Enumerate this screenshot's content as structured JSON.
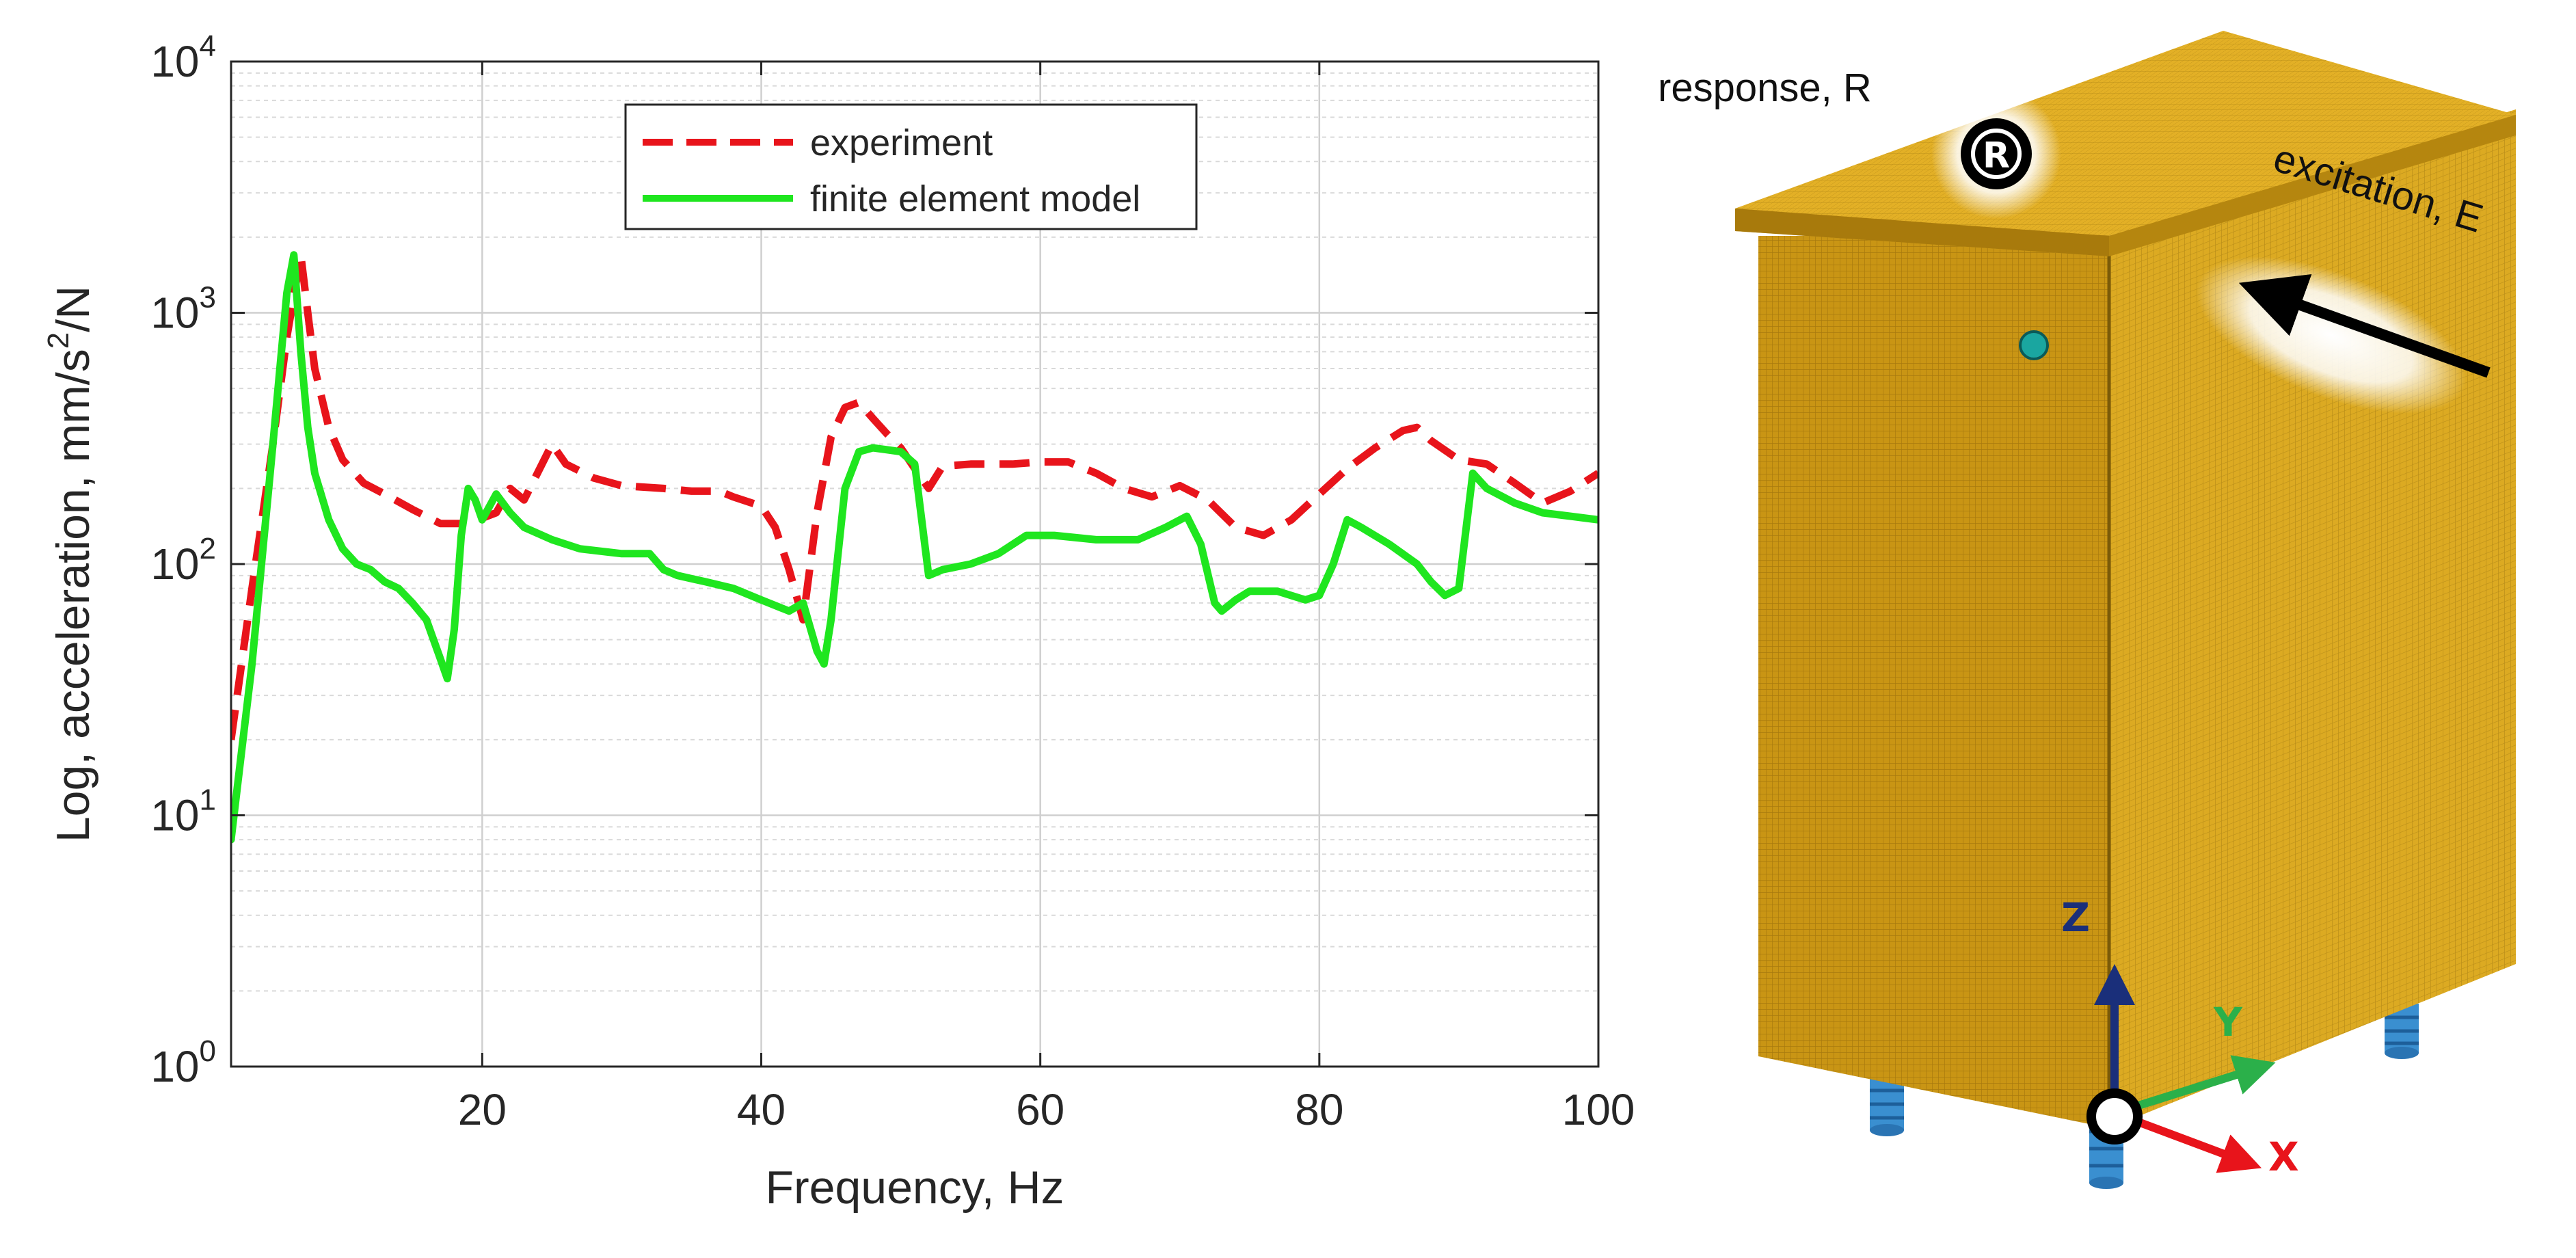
{
  "chart_data": {
    "type": "line",
    "title": "",
    "xlabel": "Frequency, Hz",
    "ylabel": "Log, acceleration, mm/s²/N",
    "ylabel_parts": {
      "prefix": "Log, acceleration, mm/s",
      "exponent": "2",
      "suffix": "/N"
    },
    "xlim": [
      2,
      100
    ],
    "ylim": [
      1,
      10000
    ],
    "yscale": "log",
    "grid": true,
    "legend_position": "top-center",
    "x_ticks": [
      20,
      40,
      60,
      80,
      100
    ],
    "y_ticks": [
      {
        "value": 1,
        "base": "10",
        "exp": "0"
      },
      {
        "value": 10,
        "base": "10",
        "exp": "1"
      },
      {
        "value": 100,
        "base": "10",
        "exp": "2"
      },
      {
        "value": 1000,
        "base": "10",
        "exp": "3"
      },
      {
        "value": 10000,
        "base": "10",
        "exp": "4"
      }
    ],
    "series": [
      {
        "name": "experiment",
        "color": "#e8141b",
        "style": "dashed",
        "x": [
          2,
          3.5,
          5,
          6,
          7,
          7.5,
          8,
          9,
          10,
          11.5,
          13,
          15,
          17,
          19,
          21,
          22,
          23,
          25,
          26,
          28,
          30,
          33,
          35,
          37,
          38,
          40,
          41,
          42,
          43,
          44,
          45,
          46,
          47,
          48,
          49,
          50,
          51,
          52,
          53,
          55,
          58,
          60,
          62,
          64,
          66,
          68,
          70,
          72,
          74,
          76,
          78,
          80,
          82,
          84,
          86,
          87,
          88,
          90,
          92,
          94,
          96,
          98,
          100
        ],
        "y": [
          20,
          80,
          300,
          800,
          1700,
          1000,
          600,
          350,
          260,
          210,
          190,
          165,
          145,
          145,
          160,
          200,
          180,
          300,
          250,
          220,
          205,
          200,
          195,
          195,
          185,
          170,
          140,
          95,
          60,
          160,
          320,
          420,
          440,
          380,
          330,
          290,
          240,
          200,
          245,
          250,
          250,
          255,
          255,
          230,
          200,
          185,
          205,
          180,
          140,
          130,
          150,
          190,
          240,
          290,
          340,
          350,
          310,
          260,
          250,
          210,
          175,
          195,
          230
        ]
      },
      {
        "name": "finite element model",
        "color": "#1fe61f",
        "style": "solid",
        "x": [
          2,
          3.5,
          5,
          6,
          6.5,
          7,
          7.5,
          8,
          9,
          10,
          11,
          12,
          13,
          14,
          15,
          16,
          17,
          17.5,
          18,
          18.5,
          19,
          19.5,
          20,
          21,
          22,
          23,
          25,
          27,
          30,
          32,
          33,
          34,
          36,
          38,
          40,
          42,
          43,
          44,
          44.5,
          45,
          46,
          47,
          48,
          49,
          50,
          51,
          52,
          53,
          55,
          57,
          59,
          61,
          64,
          67,
          69,
          70.5,
          71.5,
          72.5,
          73,
          74,
          75,
          77,
          79,
          80,
          81,
          82,
          83,
          85,
          87,
          88,
          89,
          90,
          91,
          92,
          94,
          96,
          98,
          100
        ],
        "y": [
          8,
          40,
          300,
          1200,
          1700,
          700,
          350,
          230,
          150,
          115,
          100,
          95,
          85,
          80,
          70,
          60,
          42,
          35,
          55,
          130,
          200,
          180,
          150,
          190,
          160,
          140,
          125,
          115,
          110,
          110,
          95,
          90,
          85,
          80,
          72,
          65,
          70,
          45,
          40,
          60,
          200,
          280,
          290,
          285,
          280,
          250,
          90,
          95,
          100,
          110,
          130,
          130,
          125,
          125,
          140,
          155,
          120,
          70,
          65,
          72,
          78,
          78,
          72,
          75,
          100,
          150,
          140,
          120,
          100,
          85,
          75,
          80,
          230,
          200,
          175,
          160,
          155,
          150
        ]
      }
    ]
  },
  "model_figure": {
    "annotations": {
      "response": "response, R",
      "response_marker": "R",
      "excitation": "excitation, E"
    },
    "axes": {
      "z": "Z",
      "y": "Y",
      "x": "X"
    },
    "colors": {
      "mesh": "#d6a21a",
      "mesh_dark": "#a87d0f",
      "feet": "#3a8fd0",
      "axis_z": "#1a2f7a",
      "axis_y": "#2bb04a",
      "axis_x": "#e8141b"
    }
  }
}
